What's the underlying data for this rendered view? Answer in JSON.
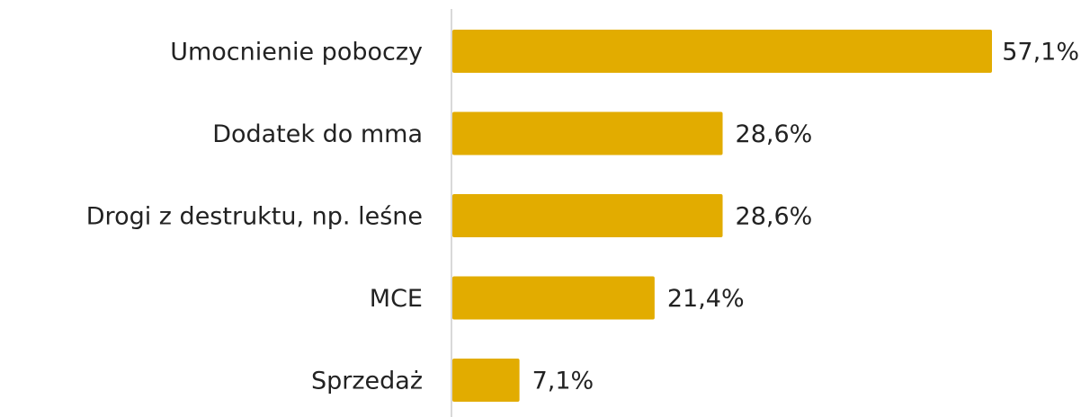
{
  "chart_data": {
    "type": "bar",
    "orientation": "horizontal",
    "categories": [
      "Umocnienie poboczy",
      "Dodatek do mma",
      "Drogi z destruktu, np. leśne",
      "MCE",
      "Sprzedaż"
    ],
    "values": [
      57.1,
      28.6,
      28.6,
      21.4,
      7.1
    ],
    "value_labels": [
      "57,1%",
      "28,6%",
      "28,6%",
      "21,4%",
      "7,1%"
    ],
    "color": "#e2ac00"
  }
}
